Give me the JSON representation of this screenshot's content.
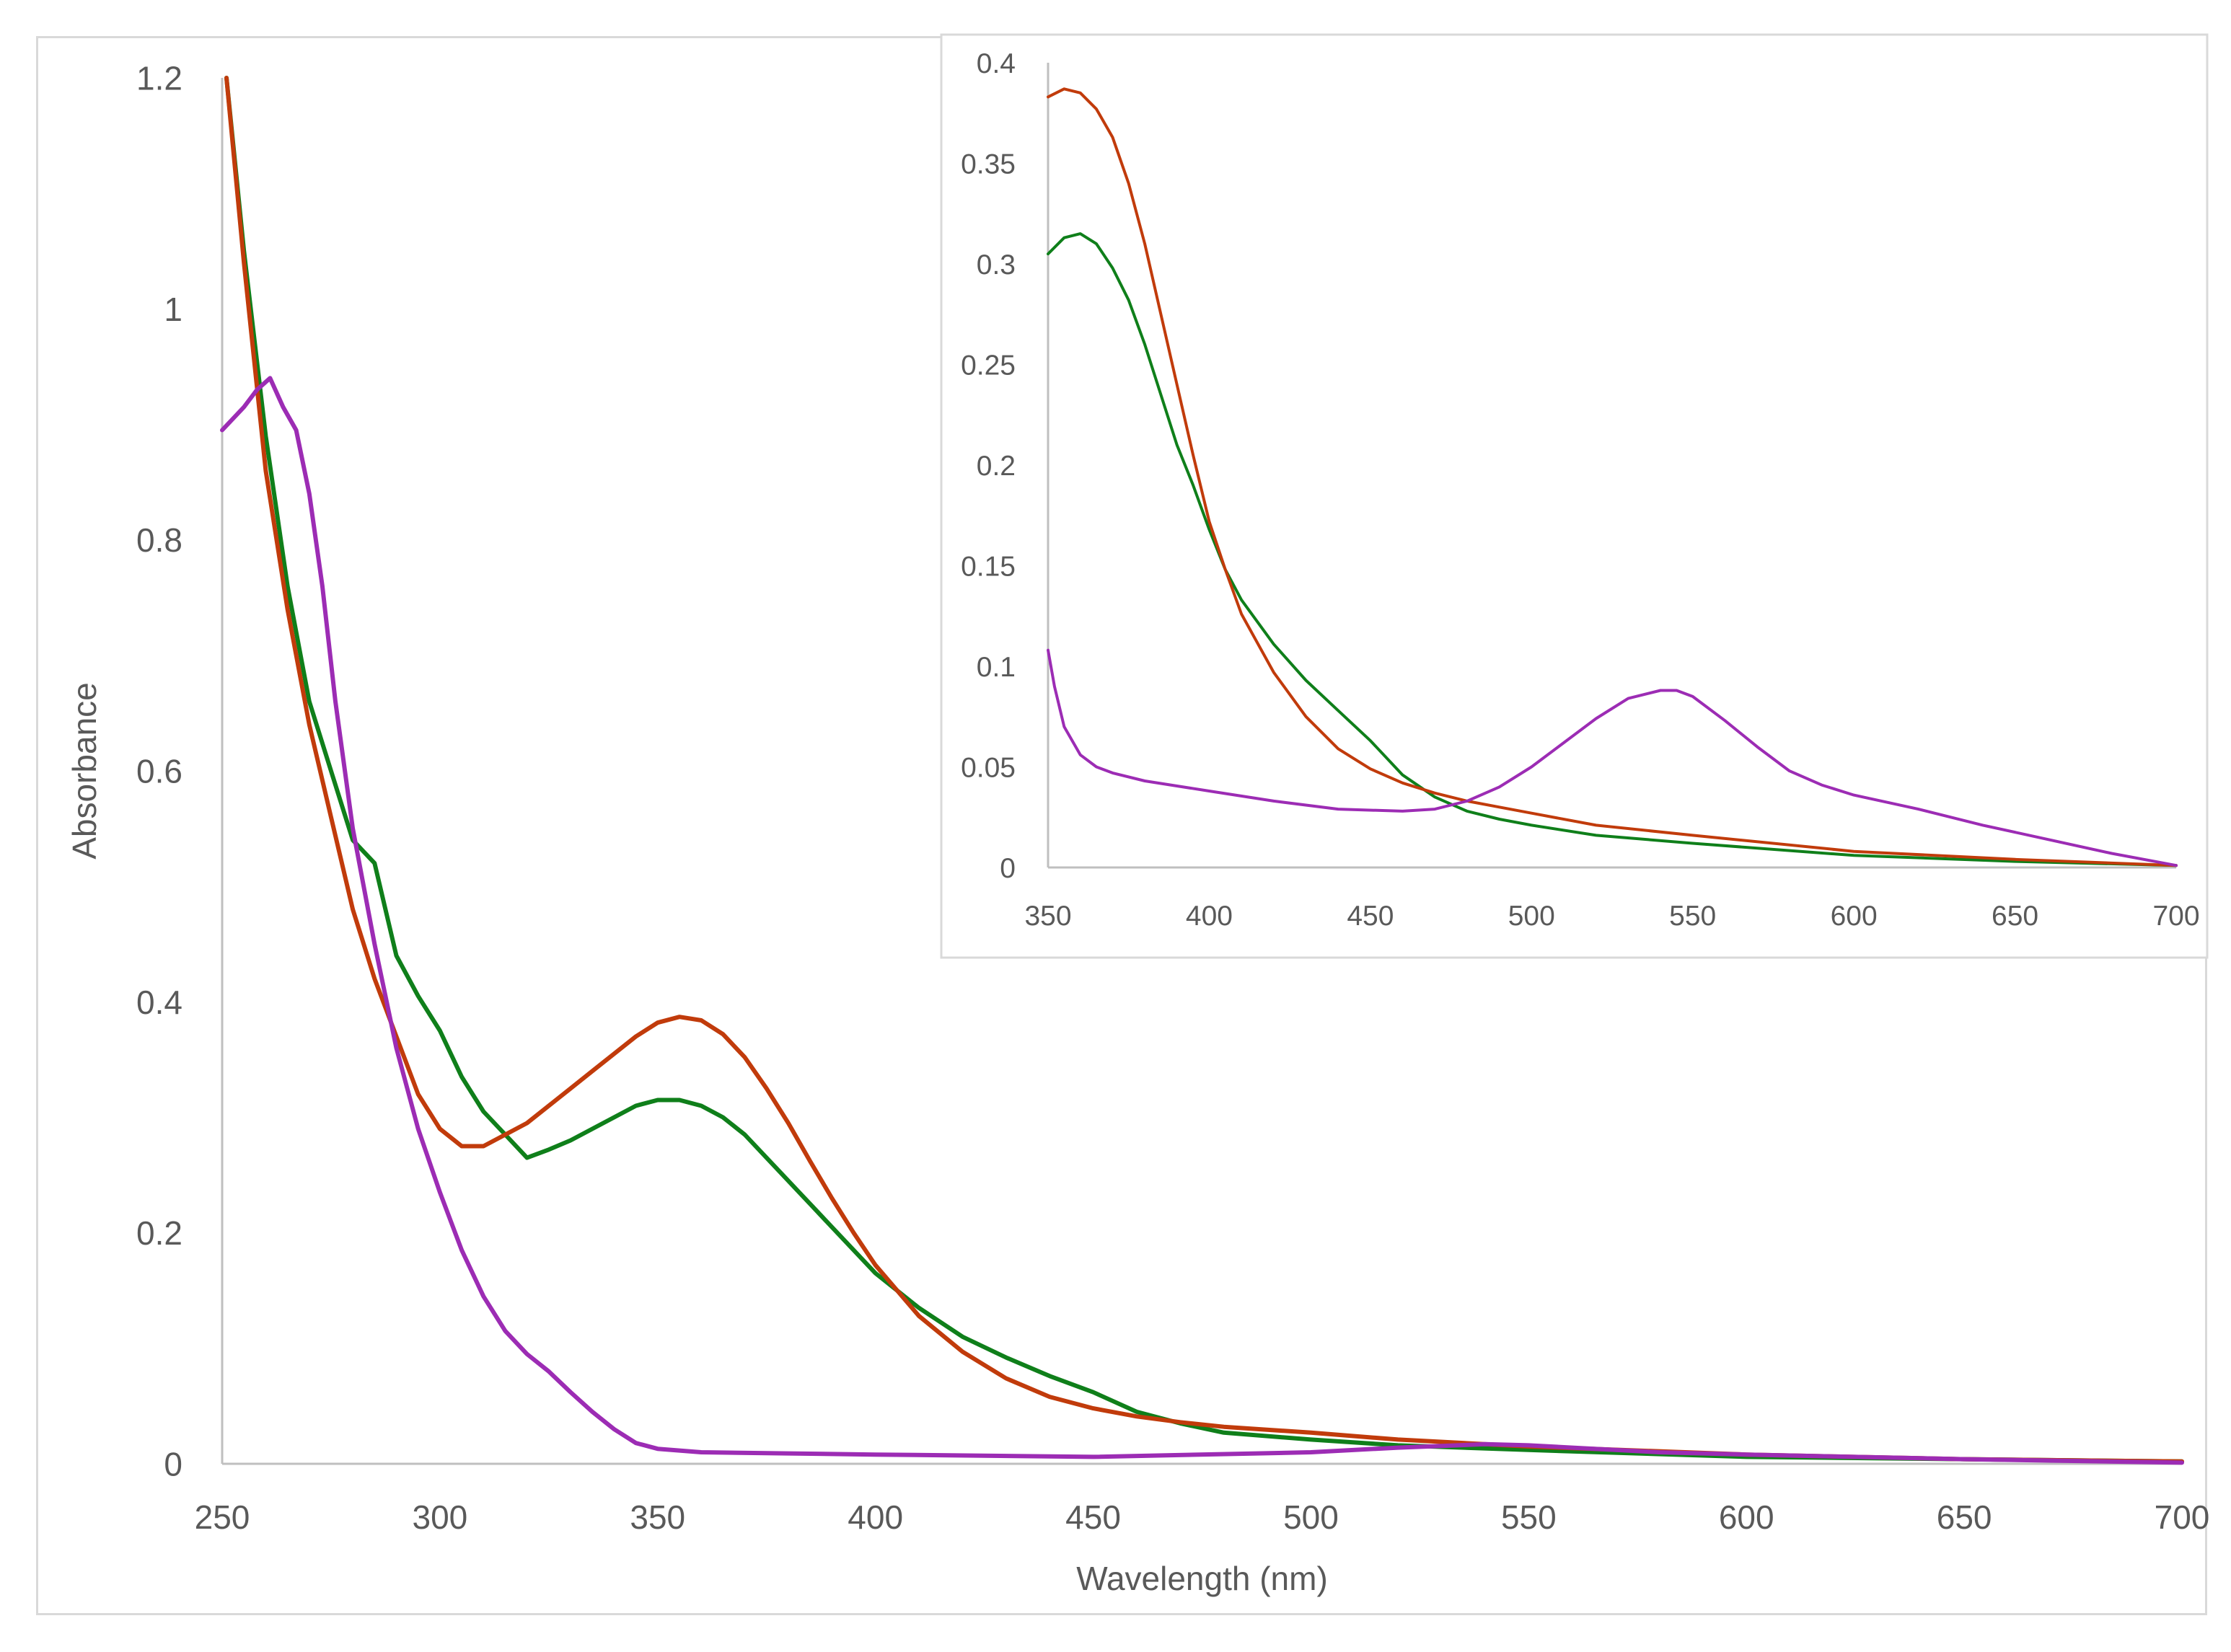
{
  "chart_data": [
    {
      "id": "main",
      "type": "line",
      "title": "",
      "xlabel": "Wavelength (nm)",
      "ylabel": "Absorbance",
      "xlim": [
        250,
        700
      ],
      "ylim": [
        0,
        1.2
      ],
      "xticks": [
        250,
        300,
        350,
        400,
        450,
        500,
        550,
        600,
        650,
        700
      ],
      "yticks": [
        0,
        0.2,
        0.4,
        0.6,
        0.8,
        1,
        1.2
      ],
      "grid": false,
      "legend": "none",
      "series": [
        {
          "name": "green",
          "color": "#0f7f1a",
          "x": [
            251,
            255,
            260,
            265,
            270,
            275,
            280,
            285,
            290,
            295,
            300,
            305,
            310,
            315,
            320,
            325,
            330,
            335,
            340,
            345,
            350,
            355,
            360,
            365,
            370,
            375,
            380,
            385,
            390,
            395,
            400,
            410,
            420,
            430,
            440,
            450,
            460,
            470,
            480,
            500,
            520,
            550,
            600,
            650,
            700
          ],
          "y": [
            1.2,
            1.05,
            0.89,
            0.76,
            0.66,
            0.6,
            0.54,
            0.52,
            0.44,
            0.405,
            0.375,
            0.335,
            0.305,
            0.285,
            0.265,
            0.272,
            0.28,
            0.29,
            0.3,
            0.31,
            0.315,
            0.315,
            0.31,
            0.3,
            0.285,
            0.265,
            0.245,
            0.225,
            0.205,
            0.185,
            0.165,
            0.135,
            0.11,
            0.092,
            0.076,
            0.062,
            0.045,
            0.035,
            0.027,
            0.021,
            0.016,
            0.012,
            0.006,
            0.004,
            0.002
          ]
        },
        {
          "name": "orange",
          "color": "#c13b0b",
          "x": [
            251,
            255,
            260,
            265,
            270,
            275,
            280,
            285,
            290,
            295,
            300,
            305,
            310,
            315,
            320,
            325,
            330,
            335,
            340,
            345,
            350,
            355,
            360,
            365,
            370,
            375,
            380,
            385,
            390,
            395,
            400,
            410,
            420,
            430,
            440,
            450,
            460,
            470,
            480,
            500,
            520,
            550,
            600,
            650,
            700
          ],
          "y": [
            1.2,
            1.04,
            0.86,
            0.74,
            0.64,
            0.56,
            0.48,
            0.42,
            0.37,
            0.32,
            0.29,
            0.275,
            0.275,
            0.285,
            0.295,
            0.31,
            0.325,
            0.34,
            0.355,
            0.37,
            0.382,
            0.387,
            0.384,
            0.372,
            0.352,
            0.325,
            0.295,
            0.262,
            0.23,
            0.2,
            0.172,
            0.128,
            0.097,
            0.074,
            0.058,
            0.048,
            0.041,
            0.036,
            0.032,
            0.027,
            0.021,
            0.015,
            0.008,
            0.004,
            0.002
          ]
        },
        {
          "name": "purple",
          "color": "#9c2cb4",
          "x": [
            250,
            255,
            258,
            261,
            264,
            267,
            270,
            273,
            276,
            280,
            285,
            290,
            295,
            300,
            305,
            310,
            315,
            320,
            325,
            330,
            335,
            340,
            345,
            350,
            360,
            380,
            400,
            450,
            500,
            520,
            540,
            550,
            560,
            580,
            600,
            650,
            700
          ],
          "y": [
            0.895,
            0.915,
            0.93,
            0.94,
            0.915,
            0.895,
            0.84,
            0.76,
            0.66,
            0.55,
            0.45,
            0.36,
            0.29,
            0.235,
            0.185,
            0.145,
            0.115,
            0.095,
            0.08,
            0.062,
            0.045,
            0.03,
            0.018,
            0.013,
            0.01,
            0.009,
            0.008,
            0.006,
            0.01,
            0.014,
            0.017,
            0.016,
            0.014,
            0.01,
            0.008,
            0.004,
            0.001
          ]
        }
      ]
    },
    {
      "id": "inset",
      "type": "line",
      "title": "",
      "xlabel": "",
      "ylabel": "",
      "xlim": [
        350,
        700
      ],
      "ylim": [
        0,
        0.4
      ],
      "xticks": [
        350,
        400,
        450,
        500,
        550,
        600,
        650,
        700
      ],
      "yticks": [
        0,
        0.05,
        0.1,
        0.15,
        0.2,
        0.25,
        0.3,
        0.35,
        0.4
      ],
      "grid": false,
      "legend": "none",
      "series": [
        {
          "name": "green",
          "color": "#0f7f1a",
          "x": [
            350,
            355,
            360,
            365,
            370,
            375,
            380,
            385,
            390,
            395,
            400,
            405,
            410,
            420,
            430,
            440,
            450,
            460,
            470,
            480,
            490,
            500,
            520,
            550,
            600,
            650,
            700
          ],
          "y": [
            0.305,
            0.313,
            0.315,
            0.31,
            0.298,
            0.282,
            0.26,
            0.235,
            0.21,
            0.19,
            0.168,
            0.148,
            0.133,
            0.111,
            0.093,
            0.078,
            0.063,
            0.046,
            0.035,
            0.028,
            0.024,
            0.021,
            0.016,
            0.012,
            0.006,
            0.003,
            0.001
          ]
        },
        {
          "name": "orange",
          "color": "#c13b0b",
          "x": [
            350,
            355,
            360,
            365,
            370,
            375,
            380,
            385,
            390,
            395,
            400,
            405,
            410,
            420,
            430,
            440,
            450,
            460,
            470,
            480,
            490,
            500,
            520,
            550,
            600,
            650,
            700
          ],
          "y": [
            0.383,
            0.387,
            0.385,
            0.377,
            0.363,
            0.34,
            0.31,
            0.275,
            0.24,
            0.205,
            0.172,
            0.148,
            0.126,
            0.097,
            0.075,
            0.059,
            0.049,
            0.042,
            0.037,
            0.033,
            0.03,
            0.027,
            0.021,
            0.016,
            0.008,
            0.004,
            0.001
          ]
        },
        {
          "name": "purple",
          "color": "#9c2cb4",
          "x": [
            350,
            352,
            355,
            360,
            365,
            370,
            380,
            400,
            420,
            440,
            460,
            470,
            480,
            490,
            500,
            510,
            520,
            530,
            540,
            545,
            550,
            560,
            570,
            580,
            590,
            600,
            620,
            640,
            660,
            680,
            700
          ],
          "y": [
            0.108,
            0.09,
            0.07,
            0.056,
            0.05,
            0.047,
            0.043,
            0.038,
            0.033,
            0.029,
            0.028,
            0.029,
            0.033,
            0.04,
            0.05,
            0.062,
            0.074,
            0.084,
            0.088,
            0.088,
            0.085,
            0.073,
            0.06,
            0.048,
            0.041,
            0.036,
            0.029,
            0.021,
            0.014,
            0.007,
            0.001
          ]
        }
      ]
    }
  ]
}
